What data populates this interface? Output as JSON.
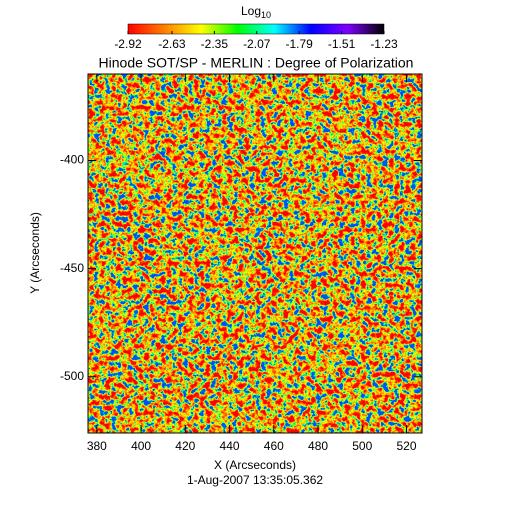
{
  "chart_data": {
    "type": "heatmap",
    "title": "Hinode SOT/SP - MERLIN : Degree of Polarization",
    "colorbar_label": {
      "base": "Log",
      "subscript": "10"
    },
    "colorbar_lim": [
      -2.92,
      -1.23
    ],
    "colorbar_ticks": [
      -2.92,
      -2.63,
      -2.35,
      -2.07,
      -1.79,
      -1.51,
      -1.23
    ],
    "colormap": [
      "#ff0000",
      "#ff8000",
      "#ffff00",
      "#00ff00",
      "#00ffff",
      "#0000ff",
      "#8000ff",
      "#000000"
    ],
    "x_label": "X (Arcseconds)",
    "y_label": "Y (Arcseconds)",
    "date_label": "1-Aug-2007 13:35:05.362",
    "xlim": [
      376,
      527
    ],
    "xticks": [
      380,
      400,
      420,
      440,
      460,
      480,
      500,
      520
    ],
    "ylim": [
      -526,
      -360
    ],
    "yticks": [
      -400,
      -450,
      -500
    ]
  }
}
